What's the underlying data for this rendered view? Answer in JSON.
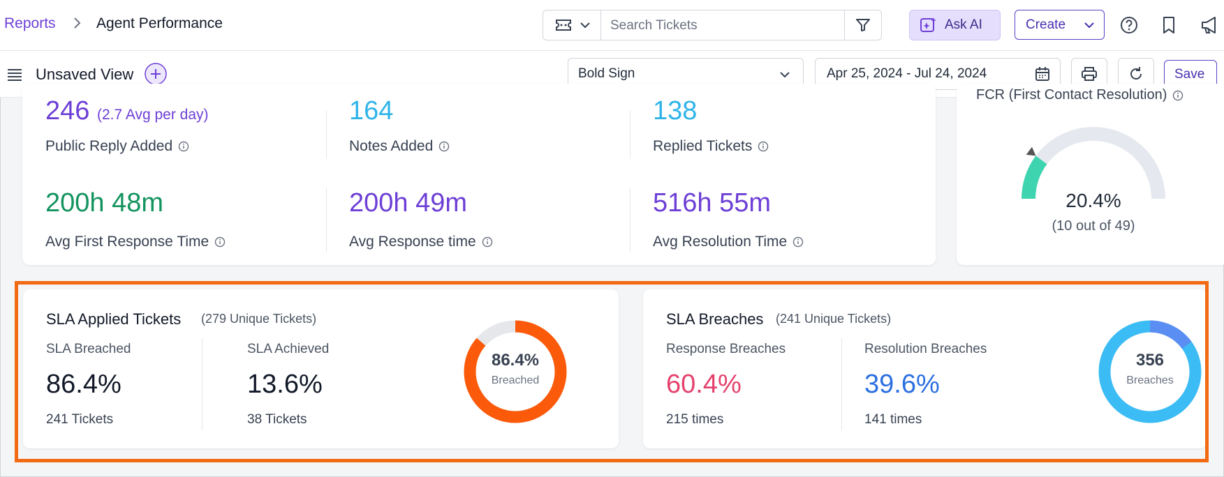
{
  "breadcrumb": {
    "parent": "Reports",
    "separator": ">",
    "current": "Agent Performance"
  },
  "search": {
    "placeholder": "Search Tickets"
  },
  "header": {
    "ask_ai": "Ask AI",
    "create": "Create"
  },
  "view": {
    "name": "Unsaved View",
    "brand_select": "Bold Sign",
    "date_range": "Apr 25, 2024 - Jul 24, 2024",
    "save": "Save"
  },
  "stats": [
    {
      "value": "246",
      "extra": "(2.7 Avg per day)",
      "label": "Public Reply Added",
      "color": "#6d3fd6"
    },
    {
      "value": "164",
      "label": "Notes Added",
      "color": "#2fb4e9"
    },
    {
      "value": "138",
      "label": "Replied Tickets",
      "color": "#2fb4e9"
    },
    {
      "value": "200h 48m",
      "label": "Avg First Response Time",
      "color": "#13935e"
    },
    {
      "value": "200h 49m",
      "label": "Avg Response time",
      "color": "#6d3fd6"
    },
    {
      "value": "516h 55m",
      "label": "Avg Resolution Time",
      "color": "#6d3fd6"
    }
  ],
  "fcr": {
    "title": "FCR (First Contact Resolution)",
    "value": "20.4%",
    "detail": "(10 out of 49)",
    "fraction": 0.204
  },
  "sla_applied": {
    "title": "SLA Applied Tickets",
    "unique": "(279 Unique Tickets)",
    "breached_label": "SLA Breached",
    "breached_pct": "86.4%",
    "breached_count": "241 Tickets",
    "achieved_label": "SLA Achieved",
    "achieved_pct": "13.6%",
    "achieved_count": "38 Tickets",
    "donut_value": "86.4%",
    "donut_label": "Breached",
    "donut_fraction": 0.864,
    "colors": {
      "primary": "#fb5a0a",
      "track": "#e5e7eb"
    }
  },
  "sla_breaches": {
    "title": "SLA Breaches",
    "unique": "(241 Unique Tickets)",
    "response_label": "Response Breaches",
    "response_pct": "60.4%",
    "response_count": "215 times",
    "resolution_label": "Resolution Breaches",
    "resolution_pct": "39.6%",
    "resolution_count": "141 times",
    "donut_value": "356",
    "donut_label": "Breaches",
    "response_fraction": 0.604,
    "resolution_fraction": 0.396,
    "colors": {
      "response": "#e5416c",
      "resolution": "#2b6fe0",
      "ring_a": "#3bbcf4",
      "ring_b": "#5b8ef2"
    }
  }
}
